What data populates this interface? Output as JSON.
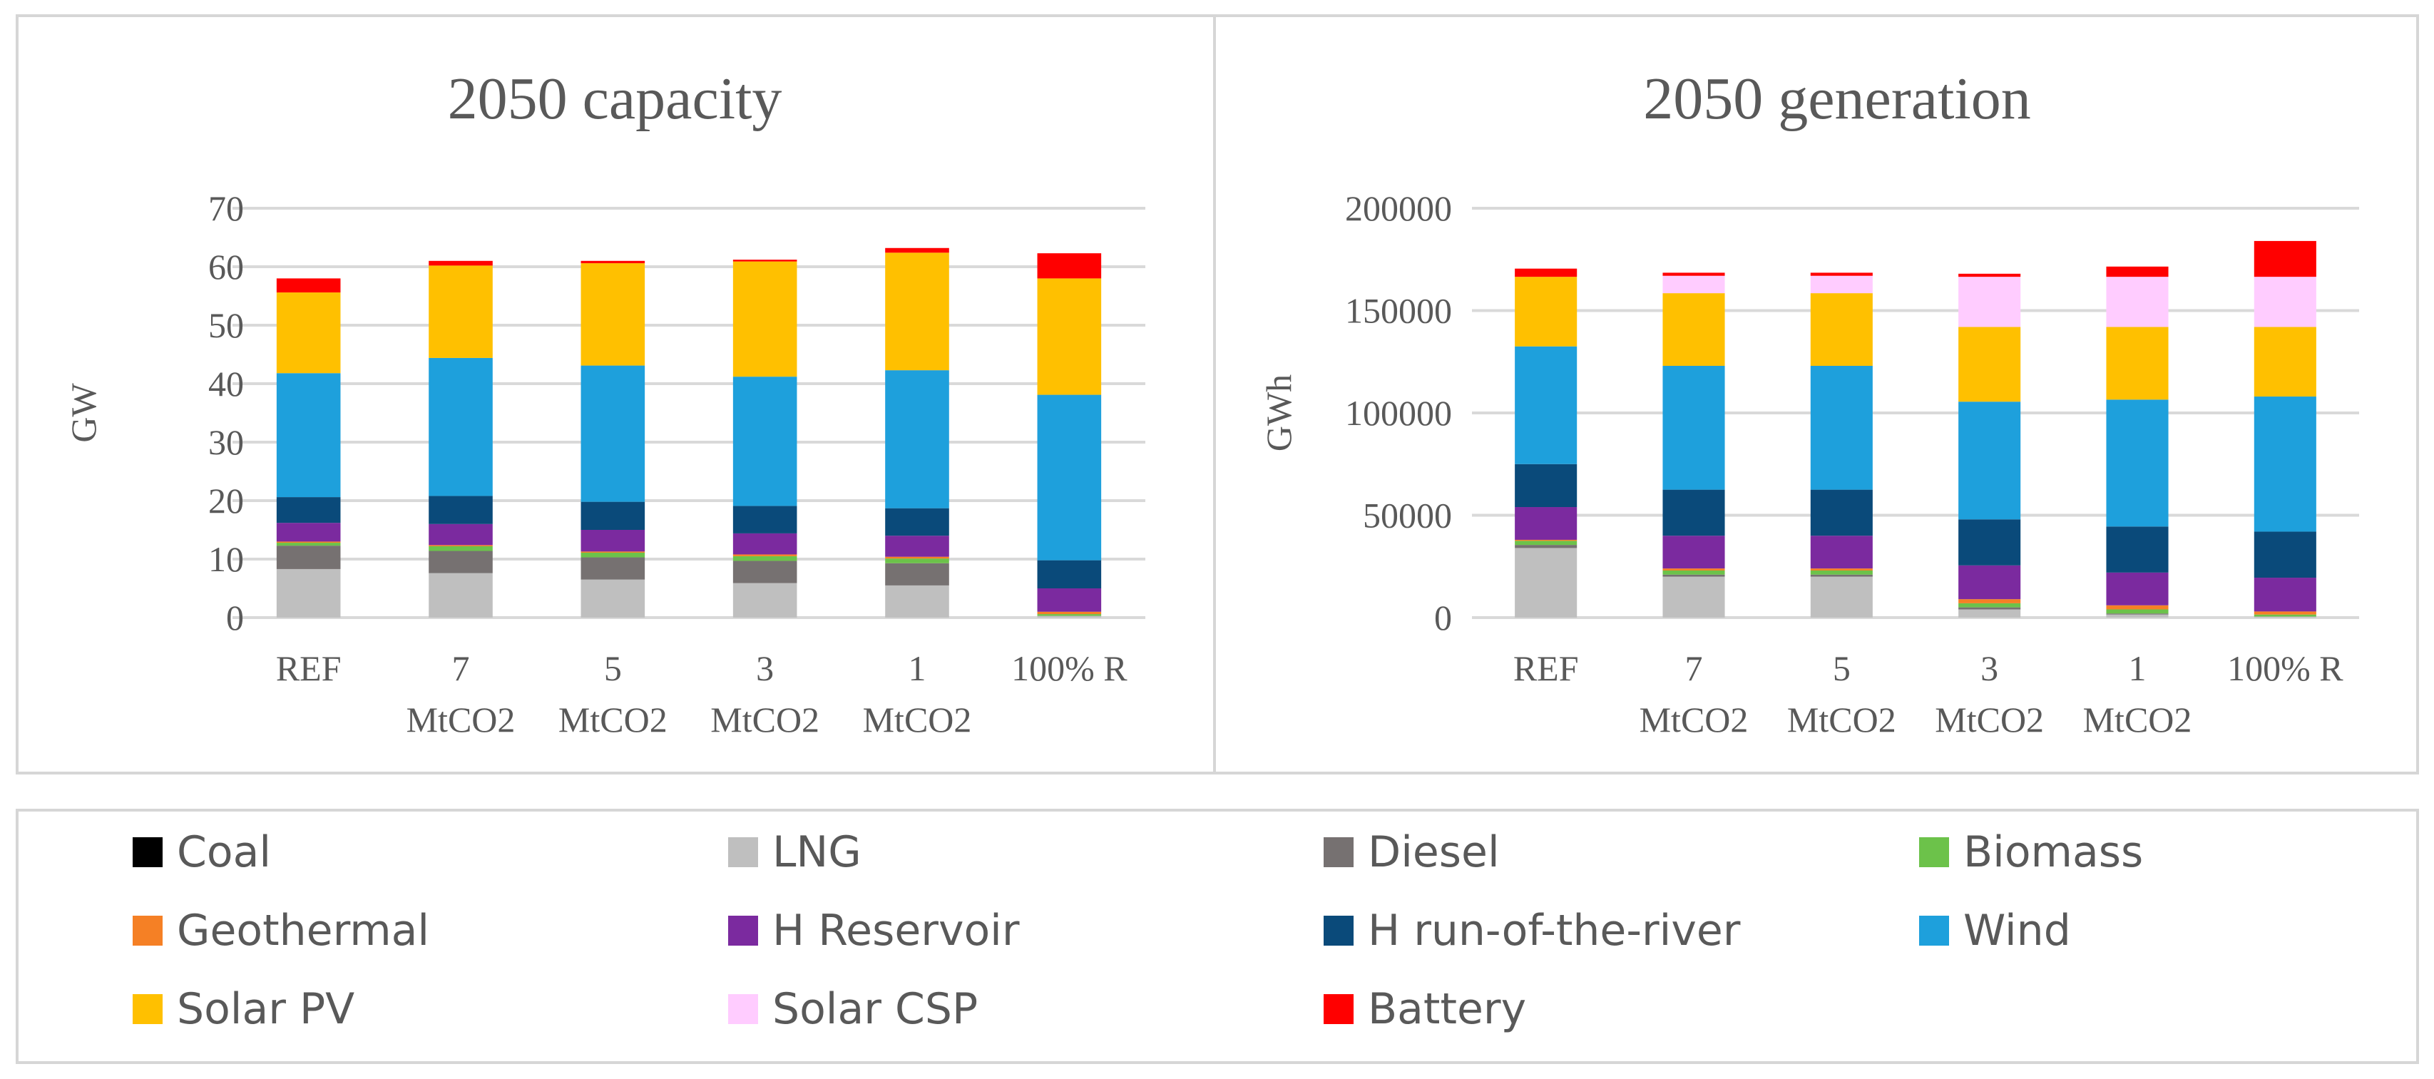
{
  "chart_data": [
    {
      "type": "bar",
      "stacked": true,
      "title": "2050 capacity",
      "xlabel": "",
      "ylabel": "GW",
      "ylim": [
        0,
        70
      ],
      "yticks": [
        "0",
        "10",
        "20",
        "30",
        "40",
        "50",
        "60",
        "70"
      ],
      "categories": [
        [
          "REF"
        ],
        [
          "7",
          "MtCO2"
        ],
        [
          "5",
          "MtCO2"
        ],
        [
          "3",
          "MtCO2"
        ],
        [
          "1",
          "MtCO2"
        ],
        [
          "100% R"
        ]
      ],
      "series": [
        {
          "name": "Coal",
          "values": [
            0,
            0,
            0,
            0,
            0,
            0
          ]
        },
        {
          "name": "LNG",
          "values": [
            8.3,
            7.6,
            6.5,
            5.9,
            5.5,
            0.3
          ]
        },
        {
          "name": "Diesel",
          "values": [
            4.0,
            3.8,
            3.8,
            3.8,
            3.8,
            0
          ]
        },
        {
          "name": "Biomass",
          "values": [
            0.5,
            0.8,
            0.8,
            0.8,
            0.8,
            0.3
          ]
        },
        {
          "name": "Geothermal",
          "values": [
            0.2,
            0.2,
            0.2,
            0.3,
            0.3,
            0.4
          ]
        },
        {
          "name": "H Reservoir",
          "values": [
            3.2,
            3.6,
            3.7,
            3.6,
            3.6,
            4.0
          ]
        },
        {
          "name": "H run-of-the-river",
          "values": [
            4.4,
            4.8,
            4.8,
            4.7,
            4.7,
            4.8
          ]
        },
        {
          "name": "Wind",
          "values": [
            21.2,
            23.6,
            23.3,
            22.1,
            23.6,
            28.3
          ]
        },
        {
          "name": "Solar PV",
          "values": [
            13.8,
            15.8,
            17.5,
            19.7,
            20.1,
            19.9
          ]
        },
        {
          "name": "Solar CSP",
          "values": [
            0,
            0,
            0,
            0,
            0,
            0
          ]
        },
        {
          "name": "Battery",
          "values": [
            2.4,
            0.8,
            0.4,
            0.3,
            0.8,
            4.3
          ]
        }
      ]
    },
    {
      "type": "bar",
      "stacked": true,
      "title": "2050 generation",
      "xlabel": "",
      "ylabel": "GWh",
      "ylim": [
        0,
        200000
      ],
      "yticks": [
        "0",
        "50000",
        "100000",
        "150000",
        "200000"
      ],
      "categories": [
        [
          "REF"
        ],
        [
          "7",
          "MtCO2"
        ],
        [
          "5",
          "MtCO2"
        ],
        [
          "3",
          "MtCO2"
        ],
        [
          "1",
          "MtCO2"
        ],
        [
          "100% R"
        ]
      ],
      "series": [
        {
          "name": "Coal",
          "values": [
            0,
            0,
            0,
            0,
            0,
            0
          ]
        },
        {
          "name": "LNG",
          "values": [
            34000,
            20000,
            20000,
            4000,
            1500,
            500
          ]
        },
        {
          "name": "Diesel",
          "values": [
            1500,
            1000,
            1000,
            1000,
            500,
            0
          ]
        },
        {
          "name": "Biomass",
          "values": [
            2000,
            2000,
            2000,
            2000,
            2000,
            1000
          ]
        },
        {
          "name": "Geothermal",
          "values": [
            500,
            1000,
            1000,
            2000,
            2000,
            1500
          ]
        },
        {
          "name": "H Reservoir",
          "values": [
            16000,
            16000,
            16000,
            16500,
            16000,
            16500
          ]
        },
        {
          "name": "H run-of-the-river",
          "values": [
            21000,
            22500,
            22500,
            22500,
            22500,
            22500
          ]
        },
        {
          "name": "Wind",
          "values": [
            57500,
            60500,
            60500,
            57500,
            62000,
            66000
          ]
        },
        {
          "name": "Solar PV",
          "values": [
            34000,
            35500,
            35500,
            36500,
            35500,
            34000
          ]
        },
        {
          "name": "Solar CSP",
          "values": [
            0,
            8500,
            8500,
            24500,
            24500,
            24500
          ]
        },
        {
          "name": "Battery",
          "values": [
            4000,
            1500,
            1500,
            1500,
            5000,
            17500
          ]
        }
      ]
    }
  ],
  "legend": [
    {
      "name": "Coal",
      "color": "#000000"
    },
    {
      "name": "LNG",
      "color": "#bfbfbf"
    },
    {
      "name": "Diesel",
      "color": "#767171"
    },
    {
      "name": "Biomass",
      "color": "#6cc24a"
    },
    {
      "name": "Geothermal",
      "color": "#f58025"
    },
    {
      "name": "H Reservoir",
      "color": "#7b2a9f"
    },
    {
      "name": "H run-of-the-river",
      "color": "#0a4a7a"
    },
    {
      "name": "Wind",
      "color": "#1ea0dc"
    },
    {
      "name": "Solar PV",
      "color": "#ffc000"
    },
    {
      "name": "Solar CSP",
      "color": "#ffccff"
    },
    {
      "name": "Battery",
      "color": "#ff0000"
    }
  ]
}
